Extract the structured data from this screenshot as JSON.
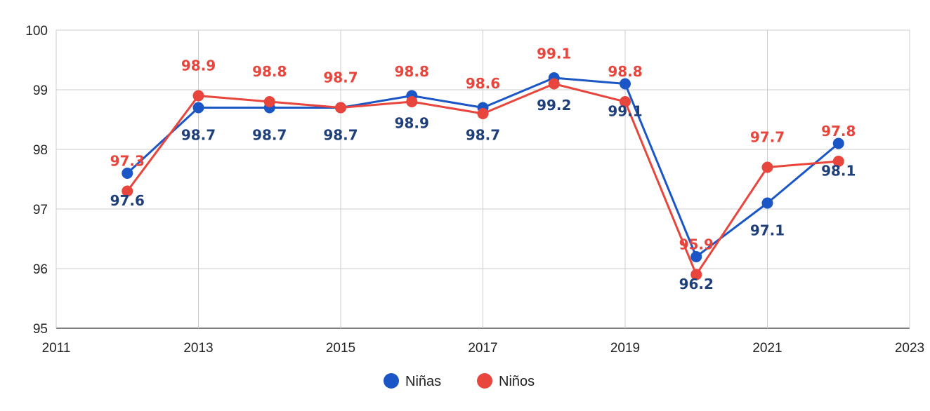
{
  "chart_data": {
    "type": "line",
    "title": "",
    "xlabel": "",
    "ylabel": "",
    "xlim": [
      2011,
      2023
    ],
    "ylim": [
      95,
      100
    ],
    "x_ticks": [
      2011,
      2013,
      2015,
      2017,
      2019,
      2021,
      2023
    ],
    "y_ticks": [
      95,
      96,
      97,
      98,
      99,
      100
    ],
    "grid": true,
    "legend_position": "bottom",
    "x": [
      2012,
      2013,
      2014,
      2015,
      2016,
      2017,
      2018,
      2019,
      2020,
      2021,
      2022
    ],
    "series": [
      {
        "name": "Niñas",
        "color": "#1a56c6",
        "label_color": "#1f3f7a",
        "label_position": "below",
        "values": [
          97.6,
          98.7,
          98.7,
          98.7,
          98.9,
          98.7,
          99.2,
          99.1,
          96.2,
          97.1,
          98.1
        ]
      },
      {
        "name": "Niños",
        "color": "#e8453c",
        "label_color": "#e8453c",
        "label_position": "above",
        "values": [
          97.3,
          98.9,
          98.8,
          98.7,
          98.8,
          98.6,
          99.1,
          98.8,
          95.9,
          97.7,
          97.8
        ]
      }
    ]
  }
}
